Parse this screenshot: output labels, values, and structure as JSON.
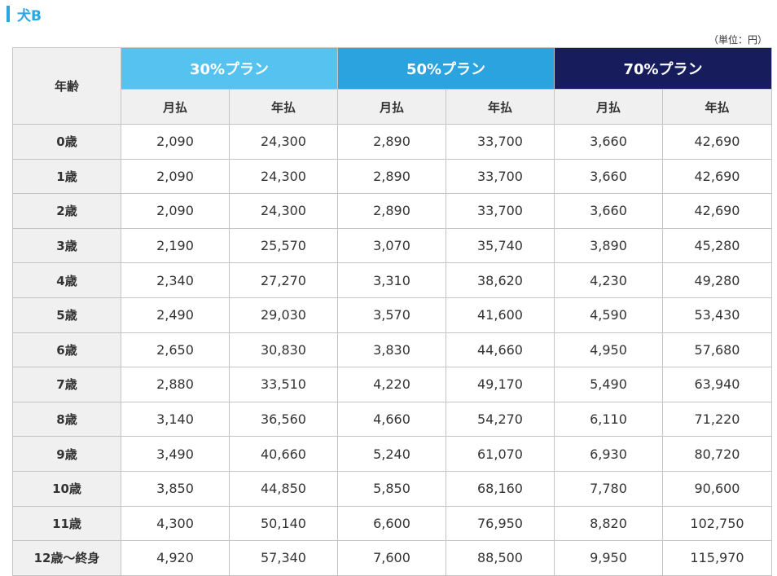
{
  "section": {
    "title": "犬B"
  },
  "unit": "（単位：円）",
  "table": {
    "age_header": "年齢",
    "plans": [
      {
        "name": "30%プラン",
        "color": "#55c2ef"
      },
      {
        "name": "50%プラン",
        "color": "#2aa3df"
      },
      {
        "name": "70%プラン",
        "color": "#161c5c"
      }
    ],
    "sub_headers": [
      "月払",
      "年払",
      "月払",
      "年払",
      "月払",
      "年払"
    ],
    "rows": [
      {
        "age": "0歳",
        "values": [
          "2,090",
          "24,300",
          "2,890",
          "33,700",
          "3,660",
          "42,690"
        ]
      },
      {
        "age": "1歳",
        "values": [
          "2,090",
          "24,300",
          "2,890",
          "33,700",
          "3,660",
          "42,690"
        ]
      },
      {
        "age": "2歳",
        "values": [
          "2,090",
          "24,300",
          "2,890",
          "33,700",
          "3,660",
          "42,690"
        ]
      },
      {
        "age": "3歳",
        "values": [
          "2,190",
          "25,570",
          "3,070",
          "35,740",
          "3,890",
          "45,280"
        ]
      },
      {
        "age": "4歳",
        "values": [
          "2,340",
          "27,270",
          "3,310",
          "38,620",
          "4,230",
          "49,280"
        ]
      },
      {
        "age": "5歳",
        "values": [
          "2,490",
          "29,030",
          "3,570",
          "41,600",
          "4,590",
          "53,430"
        ]
      },
      {
        "age": "6歳",
        "values": [
          "2,650",
          "30,830",
          "3,830",
          "44,660",
          "4,950",
          "57,680"
        ]
      },
      {
        "age": "7歳",
        "values": [
          "2,880",
          "33,510",
          "4,220",
          "49,170",
          "5,490",
          "63,940"
        ]
      },
      {
        "age": "8歳",
        "values": [
          "3,140",
          "36,560",
          "4,660",
          "54,270",
          "6,110",
          "71,220"
        ]
      },
      {
        "age": "9歳",
        "values": [
          "3,490",
          "40,660",
          "5,240",
          "61,070",
          "6,930",
          "80,720"
        ]
      },
      {
        "age": "10歳",
        "values": [
          "3,850",
          "44,850",
          "5,850",
          "68,160",
          "7,780",
          "90,600"
        ]
      },
      {
        "age": "11歳",
        "values": [
          "4,300",
          "50,140",
          "6,600",
          "76,950",
          "8,820",
          "102,750"
        ]
      },
      {
        "age": "12歳〜終身",
        "values": [
          "4,920",
          "57,340",
          "7,600",
          "88,500",
          "9,950",
          "115,970"
        ]
      }
    ]
  }
}
